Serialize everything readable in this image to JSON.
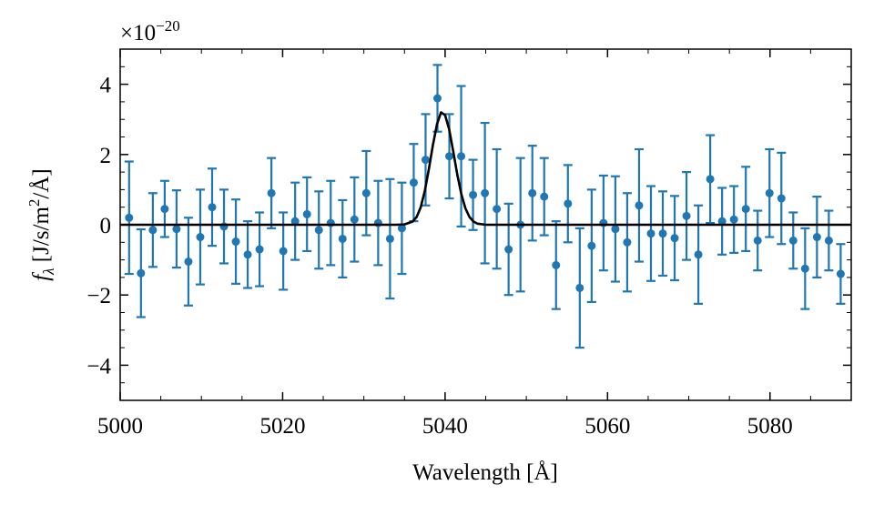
{
  "chart_data": {
    "type": "scatter",
    "x_label": "Wavelength [Å]",
    "y_label": {
      "symbol": "f",
      "subscript": "λ",
      "unit": " [J/s/m",
      "unit_power": "2",
      "unit_end": "/Å]"
    },
    "y_offset_label": {
      "base": "×10",
      "exponent": "−20"
    },
    "xlim": [
      5000,
      5090
    ],
    "ylim": [
      -5,
      5
    ],
    "xticks": [
      5000,
      5020,
      5040,
      5060,
      5080
    ],
    "yticks": [
      {
        "value": -4,
        "label": "−4"
      },
      {
        "value": -2,
        "label": "−2"
      },
      0,
      2,
      4
    ],
    "xminor_ticks": [
      5005,
      5010,
      5015,
      5025,
      5030,
      5035,
      5045,
      5050,
      5055,
      5065,
      5070,
      5075,
      5085,
      5090
    ],
    "yminor_ticks": [
      -5,
      -4.5,
      -3.5,
      -3,
      -2.5,
      -1.5,
      -1,
      -0.5,
      0.5,
      1,
      1.5,
      2.5,
      3,
      3.5,
      4.5,
      5
    ],
    "grid": false,
    "series": [
      {
        "type": "errorbar",
        "color": "#1f77b4",
        "x": [
          5001.1,
          5002.56,
          5004.02,
          5005.48,
          5006.94,
          5008.4,
          5009.86,
          5011.32,
          5012.78,
          5014.24,
          5015.7,
          5017.16,
          5018.62,
          5020.08,
          5021.54,
          5023.0,
          5024.46,
          5025.92,
          5027.38,
          5028.84,
          5030.3,
          5031.76,
          5033.22,
          5034.68,
          5036.14,
          5037.6,
          5039.06,
          5040.52,
          5041.98,
          5043.44,
          5044.9,
          5046.36,
          5047.82,
          5049.28,
          5050.74,
          5052.2,
          5053.66,
          5055.12,
          5056.58,
          5058.04,
          5059.5,
          5060.96,
          5062.42,
          5063.88,
          5065.34,
          5066.8,
          5068.26,
          5069.72,
          5071.18,
          5072.64,
          5074.1,
          5075.56,
          5077.02,
          5078.48,
          5079.94,
          5081.4,
          5082.86,
          5084.32,
          5085.78,
          5087.24,
          5088.7
        ],
        "values": [
          0.2,
          -1.38,
          -0.15,
          0.45,
          -0.12,
          -1.05,
          -0.35,
          0.5,
          -0.05,
          -0.48,
          -0.85,
          -0.7,
          0.9,
          -0.75,
          0.1,
          0.3,
          -0.15,
          0.05,
          -0.4,
          0.15,
          0.9,
          0.05,
          -0.4,
          -0.1,
          1.2,
          1.85,
          3.6,
          1.95,
          1.95,
          0.85,
          0.9,
          0.45,
          -0.7,
          0.0,
          0.9,
          0.8,
          -1.15,
          0.6,
          -1.8,
          -0.6,
          0.05,
          -0.12,
          -0.5,
          0.55,
          -0.25,
          -0.25,
          -0.38,
          0.25,
          -0.85,
          1.3,
          0.1,
          0.15,
          0.45,
          -0.45,
          0.9,
          0.75,
          -0.45,
          -1.25,
          -0.35,
          -0.45,
          -1.4
        ],
        "errors": [
          1.6,
          1.25,
          1.05,
          0.8,
          1.1,
          1.25,
          1.35,
          1.1,
          1.05,
          1.2,
          0.95,
          1.05,
          1.0,
          1.1,
          1.1,
          1.05,
          1.1,
          1.2,
          1.1,
          1.2,
          1.2,
          1.2,
          1.7,
          1.3,
          1.1,
          1.3,
          0.95,
          1.2,
          2.0,
          1.0,
          2.0,
          1.7,
          1.3,
          1.9,
          1.35,
          1.1,
          1.25,
          1.1,
          1.7,
          1.6,
          1.35,
          1.5,
          1.4,
          1.6,
          1.35,
          1.2,
          1.2,
          1.25,
          1.4,
          1.25,
          0.95,
          0.95,
          1.2,
          0.85,
          1.25,
          1.3,
          0.8,
          1.15,
          1.15,
          0.85,
          0.85
        ]
      },
      {
        "type": "line",
        "color": "#000000",
        "x": [
          5000,
          5034,
          5035,
          5036,
          5036.5,
          5037,
          5037.5,
          5038,
          5038.5,
          5039,
          5039.5,
          5040,
          5040.5,
          5041,
          5041.5,
          5042,
          5042.5,
          5043,
          5043.5,
          5044,
          5045,
          5090
        ],
        "values": [
          0,
          0,
          0.01,
          0.09,
          0.22,
          0.5,
          0.96,
          1.58,
          2.27,
          2.86,
          3.2,
          3.12,
          2.72,
          2.09,
          1.43,
          0.87,
          0.47,
          0.22,
          0.09,
          0.03,
          0,
          0
        ]
      }
    ]
  }
}
